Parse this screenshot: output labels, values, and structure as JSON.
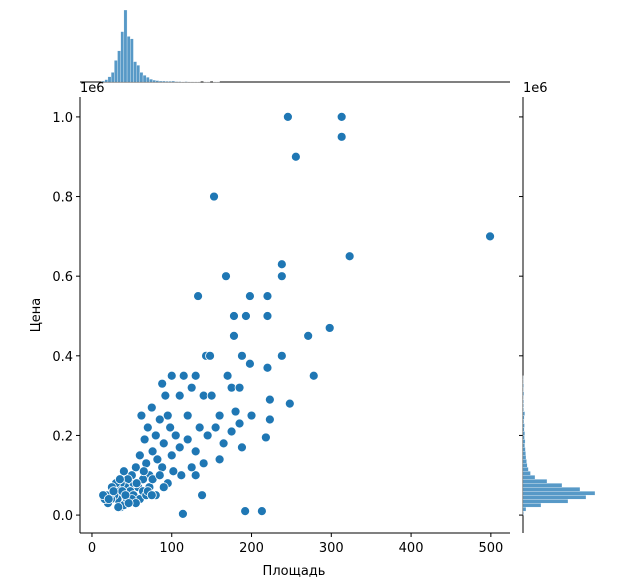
{
  "chart_data": {
    "type": "scatter",
    "xlabel": "Площадь",
    "ylabel": "Цена",
    "offset_text": "1e6",
    "color": "#1f77b4",
    "xlim": [
      -15,
      524
    ],
    "ylim": [
      -0.045,
      1.05
    ],
    "xticks": [
      0,
      100,
      200,
      300,
      400,
      500
    ],
    "yticks": [
      {
        "value": 0,
        "label": "0.0"
      },
      {
        "value": 0.2,
        "label": "0.2"
      },
      {
        "value": 0.4,
        "label": "0.4"
      },
      {
        "value": 0.6,
        "label": "0.6"
      },
      {
        "value": 0.8,
        "label": "0.8"
      },
      {
        "value": 1.0,
        "label": "1.0"
      }
    ],
    "x": [
      245.6,
      313,
      313,
      255.6,
      153,
      499,
      323,
      238,
      238,
      168,
      133,
      198,
      220,
      178,
      193,
      220,
      298,
      271,
      178,
      143,
      148,
      188,
      238,
      198,
      220,
      278,
      248,
      223,
      223,
      218,
      188,
      130,
      138,
      114,
      192,
      213,
      100,
      115,
      130,
      88,
      92,
      95,
      110,
      125,
      140,
      150,
      160,
      170,
      175,
      180,
      185,
      120,
      135,
      105,
      98,
      85,
      80,
      75,
      70,
      66,
      62,
      90,
      100,
      110,
      120,
      130,
      145,
      155,
      165,
      175,
      185,
      200,
      160,
      140,
      125,
      112,
      102,
      95,
      88,
      82,
      76,
      72,
      68,
      64,
      60,
      58,
      55,
      52,
      50,
      48,
      45,
      42,
      40,
      38,
      36,
      34,
      32,
      30,
      28,
      26,
      24,
      22,
      20,
      18,
      16,
      14,
      44,
      48,
      52,
      56,
      60,
      64,
      68,
      72,
      76,
      80,
      36,
      40,
      44,
      30,
      35,
      25,
      50,
      55,
      38,
      42,
      46,
      33,
      27,
      21,
      65,
      70,
      75,
      85,
      90
    ],
    "y": [
      1.0,
      1.0,
      0.95,
      0.9,
      0.8,
      0.7,
      0.65,
      0.63,
      0.6,
      0.6,
      0.55,
      0.55,
      0.55,
      0.5,
      0.5,
      0.5,
      0.47,
      0.45,
      0.45,
      0.4,
      0.4,
      0.4,
      0.4,
      0.38,
      0.37,
      0.35,
      0.28,
      0.29,
      0.24,
      0.195,
      0.17,
      0.1,
      0.05,
      0.003,
      0.01,
      0.01,
      0.35,
      0.35,
      0.35,
      0.33,
      0.3,
      0.25,
      0.3,
      0.32,
      0.3,
      0.3,
      0.25,
      0.35,
      0.32,
      0.26,
      0.32,
      0.25,
      0.22,
      0.2,
      0.22,
      0.24,
      0.2,
      0.27,
      0.22,
      0.19,
      0.25,
      0.18,
      0.15,
      0.17,
      0.19,
      0.16,
      0.2,
      0.22,
      0.18,
      0.21,
      0.23,
      0.25,
      0.14,
      0.13,
      0.12,
      0.1,
      0.11,
      0.08,
      0.12,
      0.14,
      0.16,
      0.1,
      0.13,
      0.09,
      0.15,
      0.07,
      0.12,
      0.08,
      0.1,
      0.06,
      0.09,
      0.07,
      0.11,
      0.05,
      0.08,
      0.06,
      0.04,
      0.07,
      0.05,
      0.06,
      0.04,
      0.05,
      0.03,
      0.05,
      0.04,
      0.05,
      0.03,
      0.06,
      0.05,
      0.08,
      0.04,
      0.06,
      0.05,
      0.07,
      0.09,
      0.05,
      0.02,
      0.025,
      0.04,
      0.08,
      0.09,
      0.07,
      0.04,
      0.03,
      0.06,
      0.05,
      0.03,
      0.02,
      0.06,
      0.04,
      0.11,
      0.06,
      0.05,
      0.1,
      0.07
    ],
    "x_hist": {
      "bins": [
        12,
        16,
        20,
        24,
        28,
        32,
        36,
        40,
        44,
        48,
        52,
        56,
        60,
        64,
        68,
        72,
        76,
        80,
        84,
        88,
        92,
        96,
        100,
        104,
        108,
        112,
        116,
        120,
        124,
        128,
        132,
        136,
        140,
        144,
        148,
        152,
        156,
        160
      ],
      "counts": [
        4,
        10,
        22,
        40,
        90,
        130,
        210,
        300,
        190,
        180,
        85,
        70,
        40,
        28,
        20,
        12,
        8,
        6,
        4,
        4,
        3,
        3,
        4,
        2,
        2,
        1,
        2,
        1,
        1,
        1,
        1,
        0,
        1,
        1,
        0,
        1,
        1
      ]
    },
    "y_hist": {
      "bins": [
        0,
        0.01,
        0.02,
        0.03,
        0.04,
        0.05,
        0.06,
        0.07,
        0.08,
        0.09,
        0.1,
        0.11,
        0.12,
        0.13,
        0.14,
        0.15,
        0.16,
        0.17,
        0.18,
        0.19,
        0.2,
        0.21,
        0.22,
        0.23,
        0.24,
        0.25,
        0.26,
        0.27,
        0.28,
        0.29,
        0.3,
        0.31,
        0.32,
        0.33,
        0.34,
        0.35
      ],
      "counts": [
        2,
        10,
        60,
        150,
        210,
        240,
        190,
        130,
        80,
        40,
        25,
        18,
        14,
        12,
        10,
        9,
        8,
        6,
        7,
        5,
        6,
        4,
        5,
        3,
        4,
        6,
        2,
        2,
        2,
        1,
        3,
        1,
        2,
        1,
        1
      ]
    }
  }
}
